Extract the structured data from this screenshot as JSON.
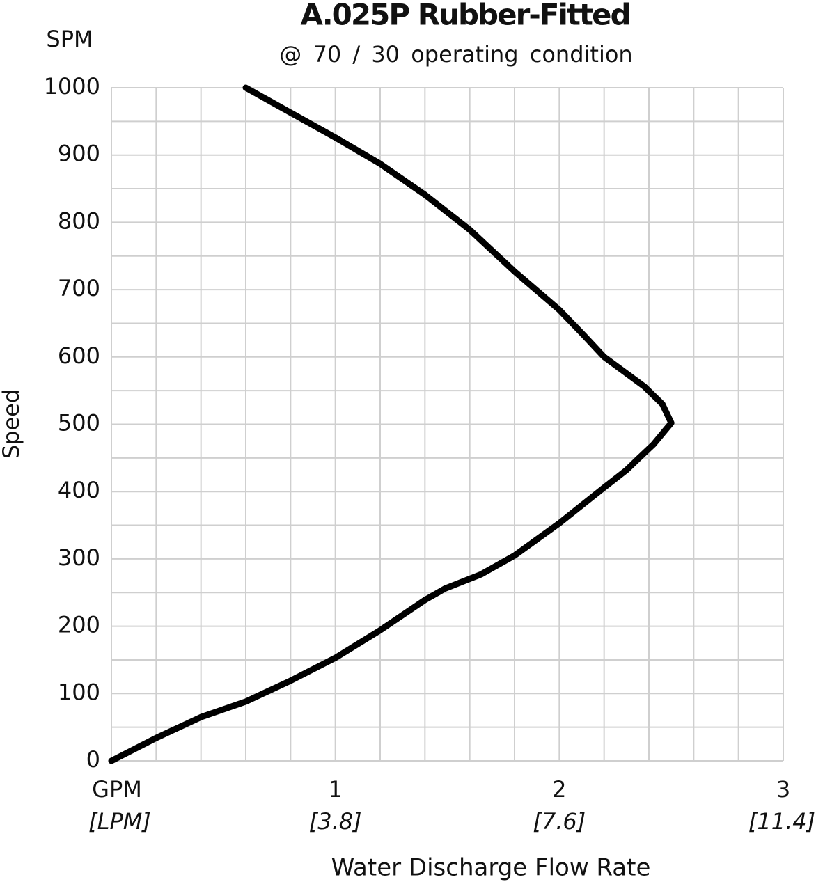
{
  "chart_data": {
    "type": "line",
    "title": "A.025P Rubber-Fitted",
    "subtitle": "@ 70 / 30 operating condition",
    "y_unit": "SPM",
    "y_label": "Speed",
    "x_label": "Water Discharge Flow Rate",
    "xlim": [
      0,
      3
    ],
    "ylim": [
      0,
      1000
    ],
    "xticks": [
      {
        "value": 0,
        "label": "GPM"
      },
      1,
      2,
      3
    ],
    "xticks_lpm": [
      {
        "value": 0,
        "label": "[LPM]"
      },
      {
        "value": 1,
        "label": "[3.8]"
      },
      {
        "value": 2,
        "label": "[7.6]"
      },
      {
        "value": 3,
        "label": "[11.4]"
      }
    ],
    "yticks": [
      0,
      100,
      200,
      300,
      400,
      500,
      600,
      700,
      800,
      900,
      1000
    ],
    "xgrid": [
      0,
      0.2,
      0.4,
      0.6,
      0.8,
      1,
      1.2,
      1.4,
      1.6,
      1.8,
      2,
      2.2,
      2.4,
      2.6,
      2.8,
      3
    ],
    "ygrid": [
      0,
      50,
      100,
      150,
      200,
      250,
      300,
      350,
      400,
      450,
      500,
      550,
      600,
      650,
      700,
      750,
      800,
      850,
      900,
      950,
      1000
    ],
    "grid": true,
    "series": [
      {
        "color": "#000000",
        "x": [
          0,
          0.2,
          0.4,
          0.6,
          0.8,
          1.0,
          1.2,
          1.4,
          1.49,
          1.65,
          1.8,
          2.0,
          2.2,
          2.3,
          2.35,
          2.42,
          2.5,
          2.46,
          2.38,
          2.2,
          2.11,
          2.0,
          1.8,
          1.6,
          1.4,
          1.2,
          1.0,
          0.8,
          0.6
        ],
        "values": [
          0,
          34,
          65,
          88,
          119,
          153,
          194,
          239,
          256,
          277,
          305,
          353,
          406,
          432,
          448,
          470,
          502,
          530,
          556,
          600,
          632,
          670,
          727,
          789,
          841,
          887,
          926,
          963,
          1000
        ]
      }
    ]
  }
}
